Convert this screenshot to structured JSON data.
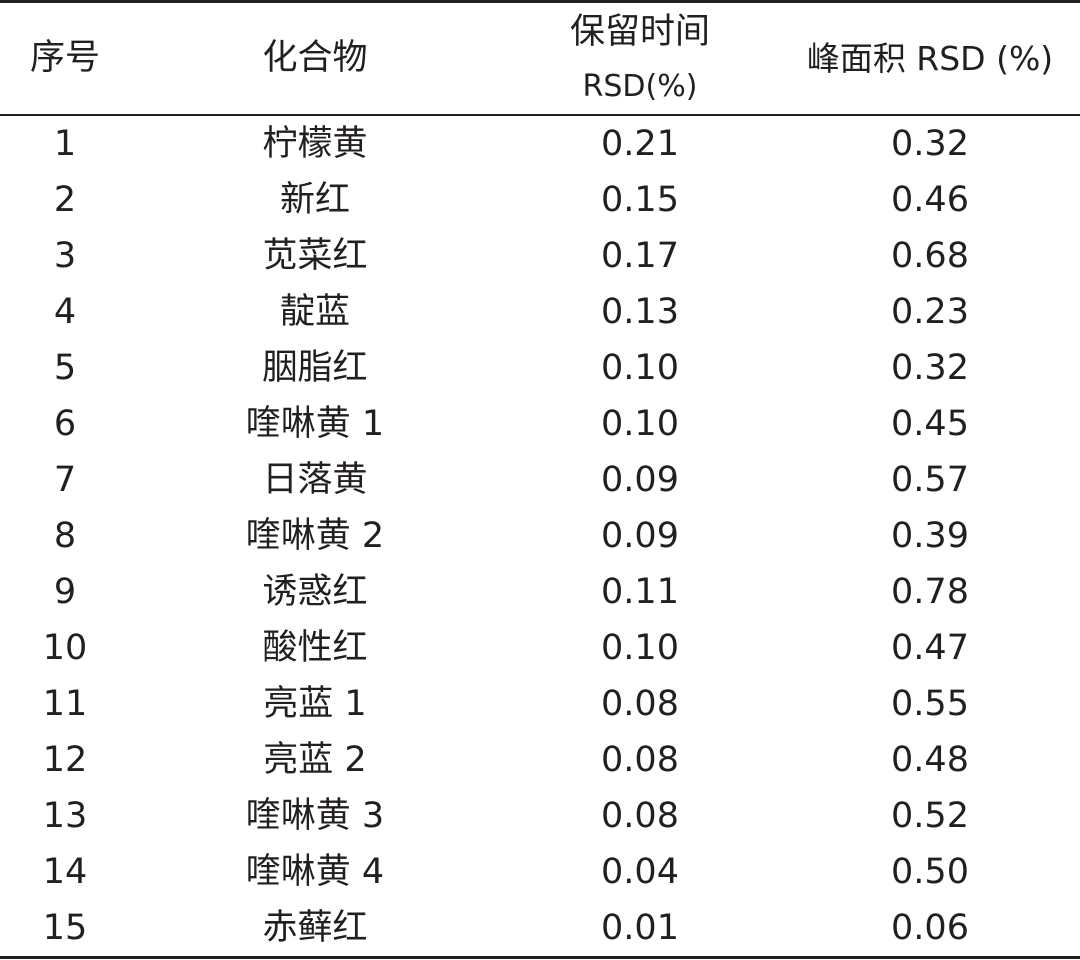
{
  "table": {
    "headers": {
      "index": "序号",
      "compound": "化合物",
      "rt_rsd_line1": "保留时间",
      "rt_rsd_line2": "RSD(%)",
      "area_rsd": "峰面积 RSD (%)"
    },
    "rows": [
      {
        "index": "1",
        "compound": "柠檬黄",
        "rt_rsd": "0.21",
        "area_rsd": "0.32"
      },
      {
        "index": "2",
        "compound": "新红",
        "rt_rsd": "0.15",
        "area_rsd": "0.46"
      },
      {
        "index": "3",
        "compound": "苋菜红",
        "rt_rsd": "0.17",
        "area_rsd": "0.68"
      },
      {
        "index": "4",
        "compound": "靛蓝",
        "rt_rsd": "0.13",
        "area_rsd": "0.23"
      },
      {
        "index": "5",
        "compound": "胭脂红",
        "rt_rsd": "0.10",
        "area_rsd": "0.32"
      },
      {
        "index": "6",
        "compound": "喹啉黄 1",
        "rt_rsd": "0.10",
        "area_rsd": "0.45"
      },
      {
        "index": "7",
        "compound": "日落黄",
        "rt_rsd": "0.09",
        "area_rsd": "0.57"
      },
      {
        "index": "8",
        "compound": "喹啉黄 2",
        "rt_rsd": "0.09",
        "area_rsd": "0.39"
      },
      {
        "index": "9",
        "compound": "诱惑红",
        "rt_rsd": "0.11",
        "area_rsd": "0.78"
      },
      {
        "index": "10",
        "compound": "酸性红",
        "rt_rsd": "0.10",
        "area_rsd": "0.47"
      },
      {
        "index": "11",
        "compound": "亮蓝 1",
        "rt_rsd": "0.08",
        "area_rsd": "0.55"
      },
      {
        "index": "12",
        "compound": "亮蓝 2",
        "rt_rsd": "0.08",
        "area_rsd": "0.48"
      },
      {
        "index": "13",
        "compound": "喹啉黄 3",
        "rt_rsd": "0.08",
        "area_rsd": "0.52"
      },
      {
        "index": "14",
        "compound": "喹啉黄 4",
        "rt_rsd": "0.04",
        "area_rsd": "0.50"
      },
      {
        "index": "15",
        "compound": "赤藓红",
        "rt_rsd": "0.01",
        "area_rsd": "0.06"
      }
    ]
  }
}
